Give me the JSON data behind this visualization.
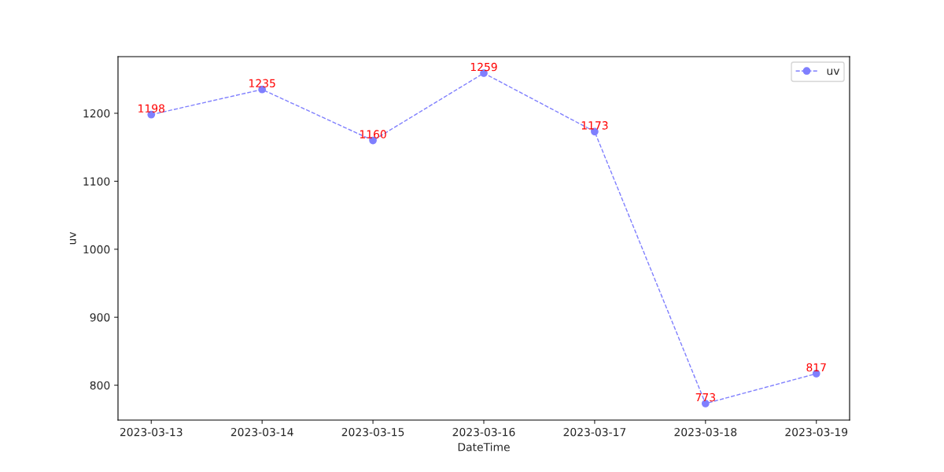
{
  "chart_data": {
    "type": "line",
    "xlabel": "DateTime",
    "ylabel": "uv",
    "categories": [
      "2023-03-13",
      "2023-03-14",
      "2023-03-15",
      "2023-03-16",
      "2023-03-17",
      "2023-03-18",
      "2023-03-19"
    ],
    "series": [
      {
        "name": "uv",
        "color": "#7f7ffe",
        "values": [
          1198,
          1235,
          1160,
          1259,
          1173,
          773,
          817
        ]
      }
    ],
    "ylim": [
      748.7,
      1283.3
    ],
    "yticks": [
      800,
      900,
      1000,
      1100,
      1200
    ],
    "data_labels": true,
    "marker": "circle",
    "line_style": "dashed",
    "legend": "top right",
    "grid": false
  }
}
